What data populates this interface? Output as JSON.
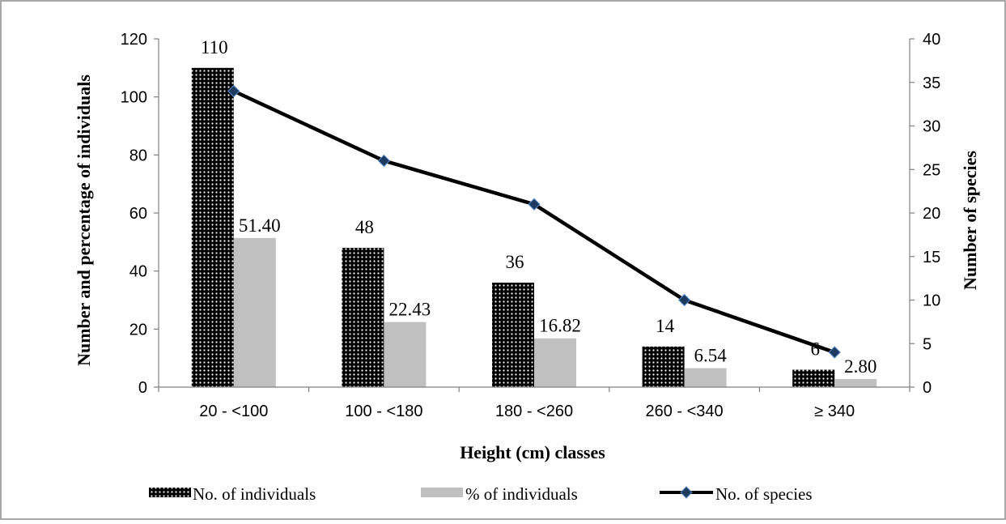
{
  "chart_data": {
    "type": "bar",
    "categories": [
      "20 - <100",
      "100 - <180",
      "180 - <260",
      "260 - <340",
      "≥ 340"
    ],
    "series": [
      {
        "name": "No. of individuals",
        "type": "bar",
        "axis": "left",
        "values": [
          110,
          48,
          36,
          14,
          6
        ],
        "labels": [
          "110",
          "48",
          "36",
          "14",
          "6"
        ],
        "pattern": "dotted-black"
      },
      {
        "name": "% of individuals",
        "type": "bar",
        "axis": "left",
        "values": [
          51.4,
          22.43,
          16.82,
          6.54,
          2.8
        ],
        "labels": [
          "51.40",
          "22.43",
          "16.82",
          "6.54",
          "2.80"
        ],
        "color": "#c0c0c0"
      },
      {
        "name": "No. of species",
        "type": "line",
        "axis": "right",
        "values": [
          34,
          26,
          21,
          10,
          4
        ],
        "color": "#000000",
        "marker_color": "#1f3a5f"
      }
    ],
    "xlabel": "Height (cm) classes",
    "ylabel": "Number and percentage of individuals",
    "y2label": "Number of species",
    "ylim": [
      0,
      120
    ],
    "y2lim": [
      0,
      40
    ],
    "yticks": [
      "0",
      "20",
      "40",
      "60",
      "80",
      "100",
      "120"
    ],
    "y2ticks": [
      "0",
      "5",
      "10",
      "15",
      "20",
      "25",
      "30",
      "35",
      "40"
    ],
    "grid": false,
    "legend": "bottom"
  }
}
